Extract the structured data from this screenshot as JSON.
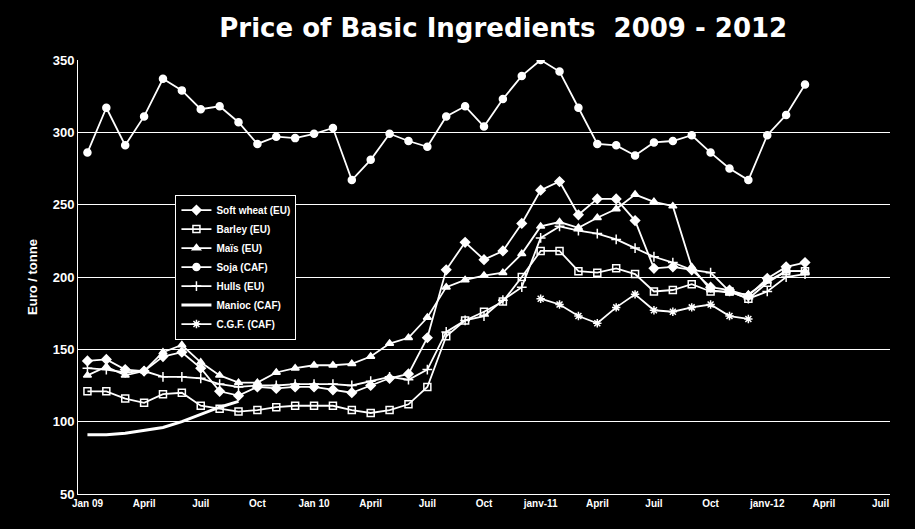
{
  "chart_data": {
    "type": "line",
    "title": "Price of Basic Ingredients  2009 - 2012",
    "ylabel": "Euro / tonne",
    "categories": [
      "Jan 09",
      null,
      null,
      "April",
      null,
      null,
      "Juil",
      null,
      null,
      "Oct",
      null,
      null,
      "Jan 10",
      null,
      null,
      "April",
      null,
      null,
      "Juil",
      null,
      null,
      "Oct",
      null,
      null,
      "janv-11",
      null,
      null,
      "April",
      null,
      null,
      "Juil",
      null,
      null,
      "Oct",
      null,
      null,
      "janv-12",
      null,
      null,
      "April",
      null,
      null,
      "Juil"
    ],
    "ylim": [
      50,
      350
    ],
    "yticks": [
      50,
      100,
      150,
      200,
      250,
      300,
      350
    ],
    "grid": true,
    "legend": "upper left",
    "series": [
      {
        "name": "Soft wheat (EU)",
        "color": "#ffffff",
        "marker": "diamond",
        "line_style": "solid",
        "values": [
          142,
          143,
          136,
          135,
          145,
          148,
          137,
          121,
          118,
          124,
          123,
          124,
          124,
          122,
          120,
          125,
          130,
          133,
          158,
          205,
          224,
          212,
          218,
          237,
          260,
          266,
          243,
          254,
          254,
          239,
          206,
          207,
          205,
          193,
          191,
          187,
          199,
          207,
          210,
          null,
          null,
          null,
          null
        ]
      },
      {
        "name": "Barley (EU)",
        "color": "#ffffff",
        "marker": "square-open",
        "line_style": "solid",
        "values": [
          121,
          121,
          116,
          113,
          119,
          120,
          111,
          109,
          107,
          108,
          110,
          111,
          111,
          111,
          108,
          106,
          108,
          112,
          124,
          159,
          170,
          176,
          183,
          200,
          218,
          218,
          204,
          203,
          206,
          202,
          190,
          191,
          195,
          190,
          190,
          185,
          196,
          204,
          204,
          null,
          null,
          null,
          null
        ]
      },
      {
        "name": "Maïs (EU)",
        "color": "#ffffff",
        "marker": "triangle",
        "line_style": "solid",
        "values": [
          132,
          138,
          132,
          135,
          148,
          153,
          141,
          132,
          127,
          127,
          134,
          137,
          139,
          139,
          140,
          145,
          154,
          158,
          172,
          193,
          198,
          201,
          203,
          216,
          235,
          238,
          234,
          241,
          247,
          257,
          252,
          249,
          207,
          191,
          189,
          188,
          197,
          204,
          204,
          null,
          null,
          null,
          null
        ]
      },
      {
        "name": "Soja (CAF)",
        "color": "#ffffff",
        "marker": "circle",
        "line_style": "solid",
        "values": [
          286,
          317,
          291,
          311,
          337,
          329,
          316,
          318,
          307,
          292,
          297,
          296,
          299,
          303,
          267,
          281,
          299,
          294,
          290,
          311,
          318,
          304,
          323,
          339,
          350,
          342,
          317,
          292,
          291,
          284,
          293,
          294,
          298,
          286,
          275,
          267,
          298,
          312,
          333,
          null,
          null,
          null,
          null
        ]
      },
      {
        "name": "Hulls (EU)",
        "color": "#ffffff",
        "marker": "cross",
        "line_style": "solid",
        "values": [
          137,
          136,
          134,
          135,
          131,
          131,
          130,
          126,
          124,
          125,
          125,
          126,
          126,
          126,
          125,
          128,
          131,
          129,
          136,
          162,
          170,
          173,
          184,
          193,
          227,
          235,
          232,
          230,
          226,
          220,
          214,
          210,
          205,
          203,
          190,
          185,
          190,
          200,
          202,
          null,
          null,
          null,
          null
        ]
      },
      {
        "name": "Manioc (CAF)",
        "color": "#ffffff",
        "marker": "none",
        "line_style": "solid",
        "values": [
          91,
          91,
          92,
          94,
          96,
          100,
          105,
          110,
          114,
          null,
          null,
          null,
          null,
          null,
          null,
          null,
          null,
          null,
          null,
          null,
          null,
          null,
          null,
          null,
          null,
          null,
          null,
          null,
          null,
          null,
          null,
          null,
          null,
          null,
          null,
          null,
          null,
          null,
          null,
          null,
          null,
          null,
          null
        ]
      },
      {
        "name": "C.G.F. (CAF)",
        "color": "#ffffff",
        "marker": "asterisk",
        "line_style": "solid",
        "values": [
          null,
          null,
          null,
          null,
          null,
          null,
          null,
          null,
          null,
          null,
          null,
          null,
          null,
          null,
          null,
          null,
          null,
          null,
          null,
          null,
          null,
          null,
          null,
          null,
          185,
          181,
          173,
          168,
          179,
          188,
          177,
          176,
          179,
          181,
          173,
          171,
          null,
          null,
          null,
          null,
          null,
          null,
          null
        ]
      }
    ]
  }
}
